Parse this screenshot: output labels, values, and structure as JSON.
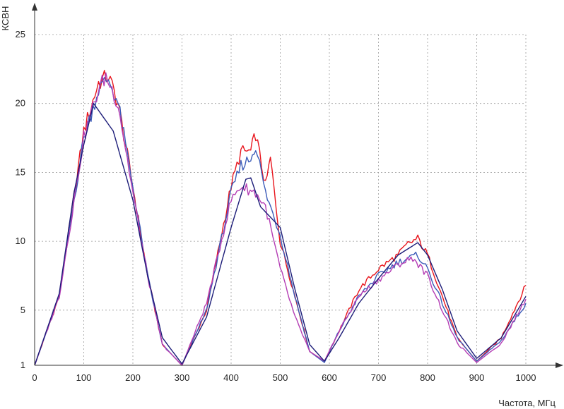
{
  "chart_data": {
    "type": "line",
    "title": "",
    "xlabel": "Частота, МГц",
    "ylabel": "КСВН",
    "xlim": [
      0,
      1000
    ],
    "ylim": [
      1,
      25
    ],
    "x_ticks": [
      0,
      100,
      200,
      300,
      400,
      500,
      600,
      700,
      800,
      900,
      1000
    ],
    "y_ticks": [
      1,
      5,
      10,
      15,
      20,
      25
    ],
    "grid": true,
    "legend": "none",
    "series": [
      {
        "color": "#e8141c",
        "points": [
          [
            0,
            1.0
          ],
          [
            50,
            6.0
          ],
          [
            100,
            18.0
          ],
          [
            130,
            21.5
          ],
          [
            150,
            22.0
          ],
          [
            170,
            20.0
          ],
          [
            200,
            14.0
          ],
          [
            230,
            7.5
          ],
          [
            260,
            2.5
          ],
          [
            300,
            1.0
          ],
          [
            350,
            5.0
          ],
          [
            400,
            14.0
          ],
          [
            420,
            16.5
          ],
          [
            440,
            16.5
          ],
          [
            450,
            17.8
          ],
          [
            470,
            14.0
          ],
          [
            480,
            16.0
          ],
          [
            500,
            10.0
          ],
          [
            530,
            6.0
          ],
          [
            560,
            2.0
          ],
          [
            590,
            1.3
          ],
          [
            620,
            3.5
          ],
          [
            660,
            6.5
          ],
          [
            700,
            8.0
          ],
          [
            740,
            9.0
          ],
          [
            760,
            9.8
          ],
          [
            780,
            10.2
          ],
          [
            800,
            9.0
          ],
          [
            830,
            6.0
          ],
          [
            860,
            3.0
          ],
          [
            900,
            1.3
          ],
          [
            950,
            3.0
          ],
          [
            1000,
            6.8
          ]
        ]
      },
      {
        "color": "#3a5ab8",
        "points": [
          [
            0,
            1.0
          ],
          [
            50,
            6.0
          ],
          [
            100,
            17.5
          ],
          [
            130,
            21.0
          ],
          [
            150,
            21.8
          ],
          [
            170,
            20.0
          ],
          [
            200,
            14.0
          ],
          [
            230,
            7.5
          ],
          [
            260,
            2.5
          ],
          [
            300,
            1.0
          ],
          [
            350,
            5.0
          ],
          [
            400,
            13.5
          ],
          [
            420,
            15.5
          ],
          [
            440,
            16.0
          ],
          [
            450,
            17.0
          ],
          [
            470,
            13.5
          ],
          [
            500,
            10.5
          ],
          [
            530,
            6.0
          ],
          [
            560,
            2.0
          ],
          [
            590,
            1.2
          ],
          [
            620,
            3.5
          ],
          [
            660,
            6.0
          ],
          [
            700,
            7.5
          ],
          [
            740,
            8.5
          ],
          [
            780,
            9.0
          ],
          [
            800,
            8.0
          ],
          [
            830,
            5.5
          ],
          [
            860,
            3.0
          ],
          [
            900,
            1.3
          ],
          [
            950,
            2.8
          ],
          [
            1000,
            5.5
          ]
        ]
      },
      {
        "color": "#b43cb4",
        "points": [
          [
            0,
            1.0
          ],
          [
            50,
            6.0
          ],
          [
            100,
            17.5
          ],
          [
            130,
            21.0
          ],
          [
            145,
            22.0
          ],
          [
            170,
            20.0
          ],
          [
            200,
            13.5
          ],
          [
            230,
            7.5
          ],
          [
            260,
            2.5
          ],
          [
            300,
            1.0
          ],
          [
            350,
            5.5
          ],
          [
            400,
            13.0
          ],
          [
            420,
            14.0
          ],
          [
            450,
            13.5
          ],
          [
            470,
            12.5
          ],
          [
            500,
            8.0
          ],
          [
            530,
            4.5
          ],
          [
            560,
            2.0
          ],
          [
            590,
            1.3
          ],
          [
            620,
            3.5
          ],
          [
            660,
            6.0
          ],
          [
            700,
            7.2
          ],
          [
            740,
            8.3
          ],
          [
            770,
            8.8
          ],
          [
            800,
            7.5
          ],
          [
            830,
            5.0
          ],
          [
            860,
            2.6
          ],
          [
            900,
            1.2
          ],
          [
            950,
            2.6
          ],
          [
            1000,
            5.8
          ]
        ]
      },
      {
        "color": "#1c1c78",
        "points": [
          [
            0,
            1.0
          ],
          [
            50,
            6.2
          ],
          [
            80,
            13.5
          ],
          [
            100,
            17.0
          ],
          [
            120,
            20.0
          ],
          [
            140,
            19.0
          ],
          [
            160,
            18.0
          ],
          [
            200,
            13.0
          ],
          [
            230,
            7.5
          ],
          [
            260,
            3.0
          ],
          [
            300,
            1.1
          ],
          [
            350,
            4.5
          ],
          [
            400,
            11.0
          ],
          [
            430,
            14.5
          ],
          [
            440,
            14.6
          ],
          [
            460,
            12.5
          ],
          [
            500,
            11.0
          ],
          [
            530,
            6.5
          ],
          [
            560,
            2.5
          ],
          [
            590,
            1.3
          ],
          [
            620,
            3.0
          ],
          [
            660,
            5.5
          ],
          [
            700,
            7.3
          ],
          [
            740,
            9.0
          ],
          [
            780,
            9.9
          ],
          [
            800,
            9.0
          ],
          [
            830,
            6.5
          ],
          [
            860,
            3.5
          ],
          [
            900,
            1.5
          ],
          [
            950,
            3.0
          ],
          [
            1000,
            6.0
          ]
        ]
      }
    ]
  }
}
